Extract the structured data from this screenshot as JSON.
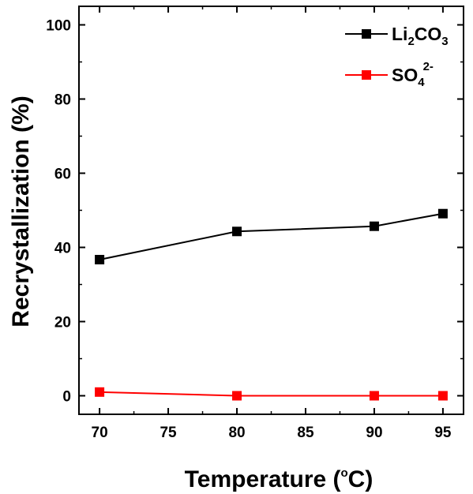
{
  "chart_data": {
    "type": "line",
    "xlabel": {
      "main": "Temperature (",
      "sup": "o",
      "end": "C)"
    },
    "ylabel": "Recrystallization (%)",
    "xlim": [
      68.5,
      96.5
    ],
    "ylim": [
      -5,
      105
    ],
    "xticks": [
      70,
      75,
      80,
      85,
      90,
      95
    ],
    "yticks": [
      0,
      20,
      40,
      60,
      80,
      100
    ],
    "grid": false,
    "legend_position": "top-right",
    "series": [
      {
        "name": "Li2CO3",
        "legend": {
          "base": "Li",
          "sub1": "2",
          "mid": "CO",
          "sub2": "3"
        },
        "color": "#000000",
        "marker": "square",
        "x": [
          70,
          80,
          90,
          95
        ],
        "y": [
          36.7,
          44.3,
          45.7,
          49.1
        ]
      },
      {
        "name": "SO42-",
        "legend": {
          "base": "SO",
          "sub": "4",
          "sup": "2-"
        },
        "color": "#ff0000",
        "marker": "square",
        "x": [
          70,
          80,
          90,
          95
        ],
        "y": [
          1.0,
          0.0,
          0.0,
          0.0
        ]
      }
    ]
  }
}
